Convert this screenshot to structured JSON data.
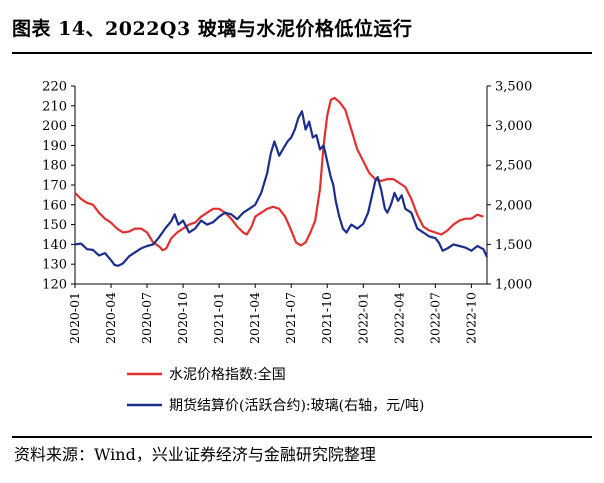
{
  "figure": {
    "title": "图表 14、2022Q3 玻璃与水泥价格低位运行",
    "source": "资料来源：Wind，兴业证券经济与金融研究院整理"
  },
  "colors": {
    "cement": "#e03030",
    "glass": "#1c2e8c",
    "axis": "#000000"
  },
  "chart_data": {
    "type": "line",
    "title": "",
    "xlabel": "",
    "ylabel_left": "",
    "ylabel_right": "",
    "ylim_left": [
      120,
      220
    ],
    "ylim_right": [
      1000,
      3500
    ],
    "yticks_left": [
      "120",
      "130",
      "140",
      "150",
      "160",
      "170",
      "180",
      "190",
      "200",
      "210",
      "220"
    ],
    "yticks_right": [
      "1,000",
      "1,500",
      "2,000",
      "2,500",
      "3,000",
      "3,500"
    ],
    "xticks": [
      "2020-01",
      "2020-04",
      "2020-07",
      "2020-10",
      "2021-01",
      "2021-04",
      "2021-07",
      "2021-10",
      "2022-01",
      "2022-04",
      "2022-07",
      "2022-10"
    ],
    "x_range_months": [
      0,
      34.3
    ],
    "legend_position": "bottom",
    "series": [
      {
        "name": "水泥价格指数:全国",
        "axis": "left",
        "color": "#e03030",
        "points": [
          [
            0,
            166
          ],
          [
            0.5,
            163
          ],
          [
            1,
            161
          ],
          [
            1.5,
            160
          ],
          [
            2,
            156
          ],
          [
            2.5,
            153
          ],
          [
            3,
            151
          ],
          [
            3.5,
            148
          ],
          [
            4,
            146
          ],
          [
            4.5,
            146.5
          ],
          [
            5,
            148
          ],
          [
            5.5,
            148
          ],
          [
            6,
            146
          ],
          [
            6.5,
            141
          ],
          [
            7,
            139
          ],
          [
            7.3,
            137
          ],
          [
            7.6,
            138
          ],
          [
            8,
            143
          ],
          [
            8.5,
            146
          ],
          [
            9,
            148
          ],
          [
            9.5,
            150
          ],
          [
            10,
            151
          ],
          [
            10.5,
            154
          ],
          [
            11,
            156
          ],
          [
            11.5,
            158
          ],
          [
            12,
            158
          ],
          [
            12.5,
            156
          ],
          [
            13,
            153
          ],
          [
            13.5,
            149
          ],
          [
            14,
            146
          ],
          [
            14.3,
            145
          ],
          [
            14.7,
            149
          ],
          [
            15,
            154
          ],
          [
            15.5,
            156
          ],
          [
            16,
            158
          ],
          [
            16.5,
            159
          ],
          [
            17,
            158
          ],
          [
            17.5,
            154
          ],
          [
            18,
            147
          ],
          [
            18.4,
            141
          ],
          [
            18.8,
            139.5
          ],
          [
            19.2,
            141
          ],
          [
            19.6,
            146
          ],
          [
            20,
            152
          ],
          [
            20.4,
            168
          ],
          [
            20.7,
            190
          ],
          [
            21,
            205
          ],
          [
            21.3,
            213
          ],
          [
            21.6,
            214
          ],
          [
            22,
            212
          ],
          [
            22.5,
            208
          ],
          [
            23,
            198
          ],
          [
            23.5,
            188
          ],
          [
            24,
            182
          ],
          [
            24.5,
            176
          ],
          [
            25,
            173
          ],
          [
            25.5,
            172
          ],
          [
            26,
            173
          ],
          [
            26.5,
            173
          ],
          [
            27,
            171
          ],
          [
            27.5,
            169
          ],
          [
            28,
            163
          ],
          [
            28.5,
            155
          ],
          [
            29,
            149
          ],
          [
            29.5,
            147
          ],
          [
            30,
            146
          ],
          [
            30.5,
            145
          ],
          [
            31,
            147
          ],
          [
            31.5,
            150
          ],
          [
            32,
            152
          ],
          [
            32.5,
            153
          ],
          [
            33,
            153
          ],
          [
            33.5,
            155
          ],
          [
            34,
            154
          ]
        ]
      },
      {
        "name": "期货结算价(活跃合约):玻璃(右轴，元/吨)",
        "axis": "right",
        "color": "#1c2e8c",
        "points": [
          [
            0,
            1500
          ],
          [
            0.5,
            1510
          ],
          [
            1,
            1440
          ],
          [
            1.5,
            1430
          ],
          [
            2,
            1360
          ],
          [
            2.5,
            1390
          ],
          [
            3,
            1300
          ],
          [
            3.3,
            1240
          ],
          [
            3.6,
            1230
          ],
          [
            4,
            1260
          ],
          [
            4.5,
            1350
          ],
          [
            5,
            1400
          ],
          [
            5.5,
            1450
          ],
          [
            6,
            1480
          ],
          [
            6.5,
            1500
          ],
          [
            7,
            1590
          ],
          [
            7.5,
            1700
          ],
          [
            8,
            1790
          ],
          [
            8.3,
            1880
          ],
          [
            8.6,
            1750
          ],
          [
            9,
            1800
          ],
          [
            9.5,
            1650
          ],
          [
            10,
            1700
          ],
          [
            10.5,
            1800
          ],
          [
            11,
            1750
          ],
          [
            11.5,
            1780
          ],
          [
            12,
            1850
          ],
          [
            12.5,
            1900
          ],
          [
            13,
            1880
          ],
          [
            13.5,
            1820
          ],
          [
            14,
            1900
          ],
          [
            14.5,
            1950
          ],
          [
            15,
            2000
          ],
          [
            15.5,
            2150
          ],
          [
            16,
            2400
          ],
          [
            16.3,
            2650
          ],
          [
            16.6,
            2800
          ],
          [
            17,
            2620
          ],
          [
            17.3,
            2700
          ],
          [
            17.7,
            2800
          ],
          [
            18,
            2850
          ],
          [
            18.3,
            2950
          ],
          [
            18.6,
            3100
          ],
          [
            18.9,
            3180
          ],
          [
            19.2,
            2950
          ],
          [
            19.5,
            3050
          ],
          [
            19.8,
            2850
          ],
          [
            20.1,
            2880
          ],
          [
            20.4,
            2700
          ],
          [
            20.7,
            2750
          ],
          [
            21,
            2550
          ],
          [
            21.3,
            2350
          ],
          [
            21.5,
            2250
          ],
          [
            21.7,
            2050
          ],
          [
            22,
            1850
          ],
          [
            22.3,
            1700
          ],
          [
            22.6,
            1650
          ],
          [
            23,
            1750
          ],
          [
            23.5,
            1700
          ],
          [
            24,
            1760
          ],
          [
            24.4,
            1900
          ],
          [
            24.7,
            2100
          ],
          [
            25,
            2300
          ],
          [
            25.2,
            2350
          ],
          [
            25.5,
            2180
          ],
          [
            25.8,
            1950
          ],
          [
            26,
            1900
          ],
          [
            26.3,
            2000
          ],
          [
            26.6,
            2150
          ],
          [
            26.9,
            2050
          ],
          [
            27.2,
            2120
          ],
          [
            27.5,
            1950
          ],
          [
            28,
            1900
          ],
          [
            28.5,
            1700
          ],
          [
            29,
            1650
          ],
          [
            29.5,
            1600
          ],
          [
            30,
            1580
          ],
          [
            30.3,
            1520
          ],
          [
            30.6,
            1420
          ],
          [
            31,
            1450
          ],
          [
            31.5,
            1500
          ],
          [
            32,
            1480
          ],
          [
            32.5,
            1460
          ],
          [
            33,
            1420
          ],
          [
            33.5,
            1480
          ],
          [
            34,
            1440
          ],
          [
            34.3,
            1340
          ]
        ]
      }
    ]
  }
}
